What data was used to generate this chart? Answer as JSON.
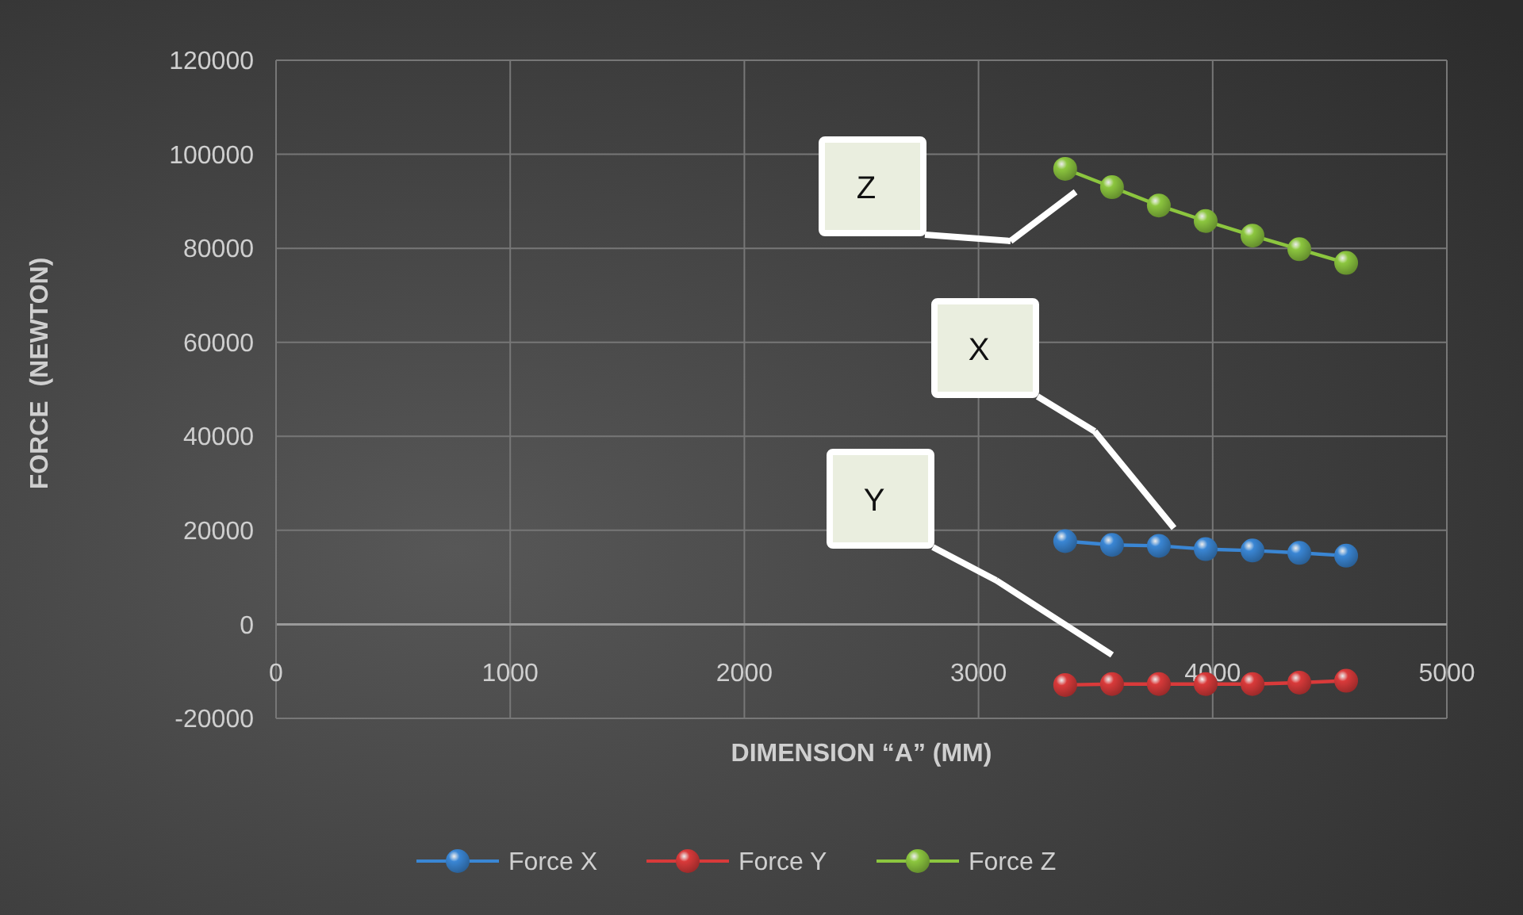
{
  "chart_data": {
    "type": "line",
    "xlabel": "DIMENSION “A” (MM)",
    "ylabel": "FORCE  (NEWTON)",
    "x": [
      3370,
      3570,
      3770,
      3970,
      4170,
      4370,
      4570
    ],
    "series": [
      {
        "name": "Force X",
        "color": "#3a86d4",
        "values": [
          17700,
          16900,
          16700,
          16000,
          15700,
          15200,
          14600
        ]
      },
      {
        "name": "Force Y",
        "color": "#d93a3a",
        "values": [
          -12900,
          -12700,
          -12700,
          -12700,
          -12700,
          -12400,
          -12000
        ]
      },
      {
        "name": "Force Z",
        "color": "#8cc63f",
        "values": [
          96900,
          93000,
          89100,
          85800,
          82700,
          79800,
          76900
        ]
      }
    ],
    "xlim": [
      0,
      5000
    ],
    "xticks": [
      0,
      1000,
      2000,
      3000,
      4000,
      5000
    ],
    "ylim": [
      -20000,
      120000
    ],
    "yticks": [
      -20000,
      0,
      20000,
      40000,
      60000,
      80000,
      100000,
      120000
    ],
    "annotations": [
      "Z",
      "X",
      "Y"
    ],
    "grid": true,
    "legend": "bottom",
    "marker": "circle",
    "line_style": "solid"
  }
}
